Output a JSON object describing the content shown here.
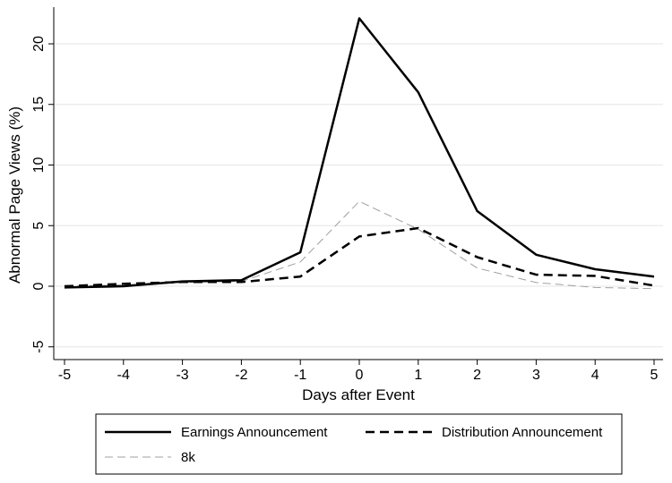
{
  "chart_data": {
    "type": "line",
    "title": "",
    "xlabel": "Days after Event",
    "ylabel": "Abnormal Page Views (%)",
    "x": [
      -5,
      -4,
      -3,
      -2,
      -1,
      0,
      1,
      2,
      3,
      4,
      5
    ],
    "xlim": [
      -5,
      5
    ],
    "ylim": [
      -5,
      22
    ],
    "xticks": [
      -5,
      -4,
      -3,
      -2,
      -1,
      0,
      1,
      2,
      3,
      4,
      5
    ],
    "yticks": [
      -5,
      0,
      5,
      10,
      15,
      20
    ],
    "grid": true,
    "legend_position": "bottom",
    "series": [
      {
        "name": "Earnings Announcement",
        "style": "solid",
        "color": "#000000",
        "values": [
          -0.1,
          0.0,
          0.4,
          0.5,
          2.8,
          22.1,
          16.0,
          6.2,
          2.6,
          1.4,
          0.8
        ]
      },
      {
        "name": "Distribution Announcement",
        "style": "dashed",
        "color": "#000000",
        "values": [
          0.0,
          0.2,
          0.35,
          0.35,
          0.8,
          4.1,
          4.8,
          2.4,
          0.95,
          0.85,
          0.05
        ]
      },
      {
        "name": "8k",
        "style": "dashed-light",
        "color": "#a0a0a0",
        "values": [
          0.0,
          0.1,
          0.3,
          0.4,
          2.0,
          7.0,
          4.7,
          1.5,
          0.3,
          -0.1,
          -0.2
        ]
      }
    ]
  }
}
